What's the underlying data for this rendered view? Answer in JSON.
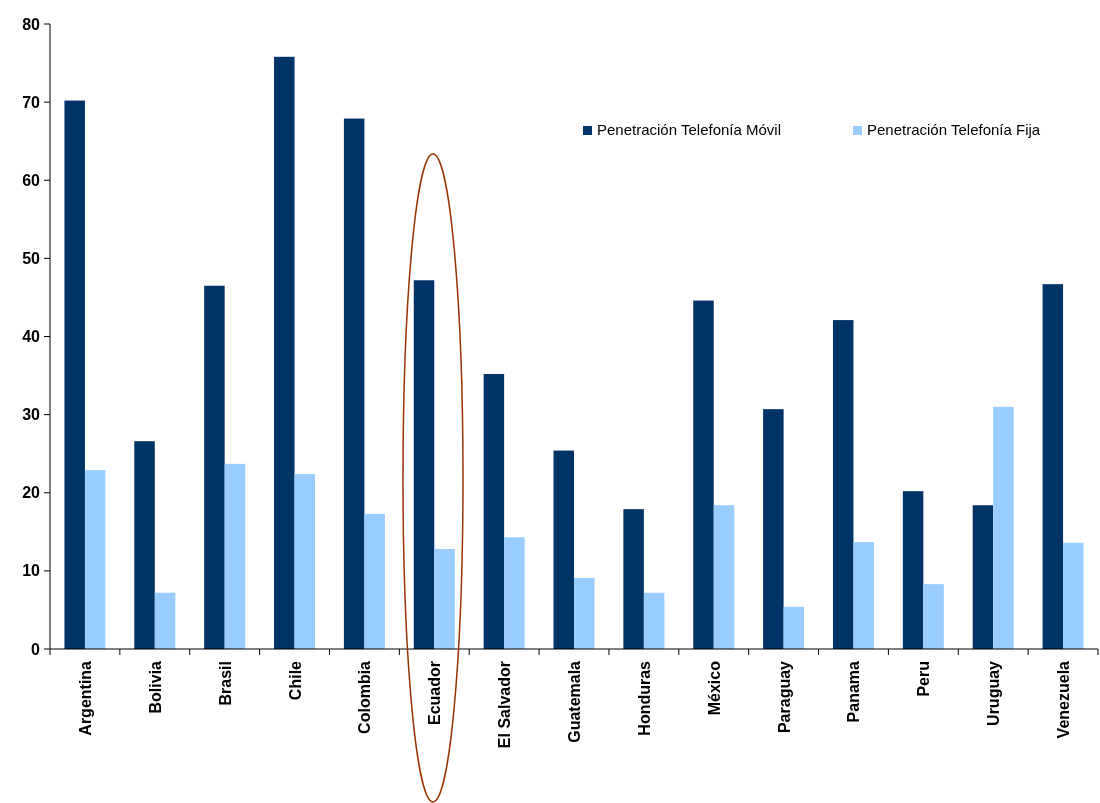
{
  "chart_data": {
    "type": "bar",
    "categories": [
      "Argentina",
      "Bolivia",
      "Brasil",
      "Chile",
      "Colombia",
      "Ecuador",
      "El Salvador",
      "Guatemala",
      "Honduras",
      "México",
      "Paraguay",
      "Panama",
      "Peru",
      "Uruguay",
      "Venezuela"
    ],
    "series": [
      {
        "name": "Penetración Telefonía Móvil",
        "color": "#003366",
        "values": [
          70.2,
          26.6,
          46.5,
          75.8,
          67.9,
          47.2,
          35.2,
          25.4,
          17.9,
          44.6,
          30.7,
          42.1,
          20.2,
          18.4,
          46.7
        ]
      },
      {
        "name": "Penetración Telefonía Fija",
        "color": "#99ccff",
        "values": [
          22.9,
          7.2,
          23.7,
          22.4,
          17.3,
          12.8,
          14.3,
          9.1,
          7.2,
          18.4,
          5.4,
          13.7,
          8.3,
          31.0,
          13.6
        ]
      }
    ],
    "ylim": [
      0,
      80
    ],
    "yticks": [
      0,
      10,
      20,
      30,
      40,
      50,
      60,
      70,
      80
    ],
    "grid": false,
    "legend": "top right"
  }
}
